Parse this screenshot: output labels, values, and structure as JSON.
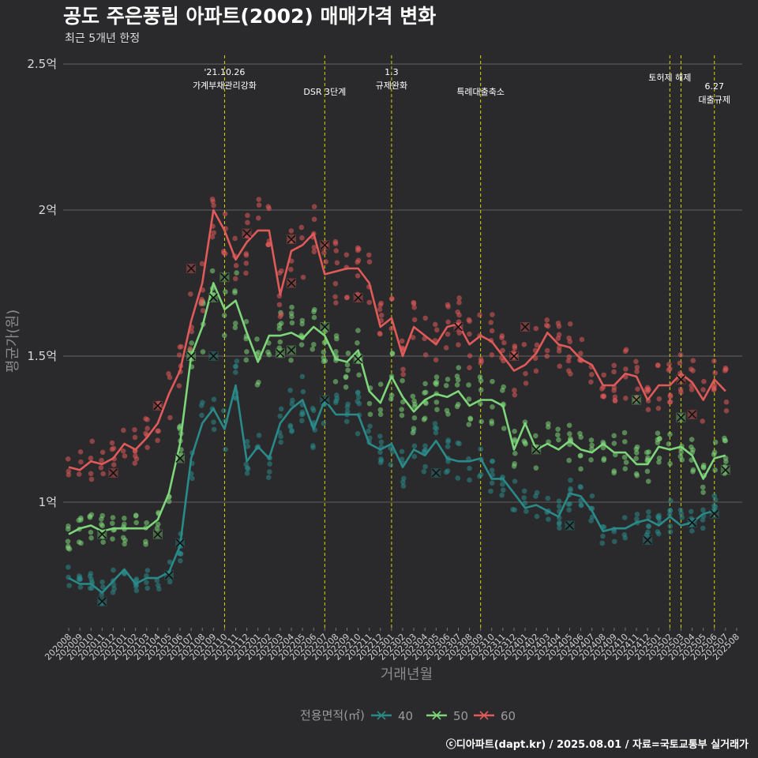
{
  "title": "공도 주은풍림 아파트(2002) 매매가격 변화",
  "subtitle": "최근 5개년 한정",
  "caption": "ⓒ디아파트(dapt.kr) / 2025.08.01 / 자료=국토교통부 실거래가",
  "colors": {
    "background": "#2a292b",
    "grid": "#5a595b",
    "event_line": "#d6d600",
    "s40": "#2a8a8a",
    "s50": "#7ed67a",
    "s60": "#e05a5a"
  },
  "chart_data": {
    "type": "line",
    "title": "공도 주은풍림 아파트(2002) 매매가격 변화",
    "subtitle": "최근 5개년 한정",
    "xlabel": "거래년월",
    "ylabel": "평균가(원)",
    "ylim": [
      0.57,
      2.53
    ],
    "yticks": [
      1.0,
      1.5,
      2.0,
      2.5
    ],
    "ytick_labels": [
      "1억",
      "1.5억",
      "2억",
      "2.5억"
    ],
    "grid": true,
    "legend_title": "전용면적(㎡)",
    "legend_position": "bottom",
    "categories": [
      "202008",
      "202009",
      "202010",
      "202011",
      "202012",
      "202101",
      "202102",
      "202103",
      "202104",
      "202105",
      "202106",
      "202107",
      "202108",
      "202109",
      "202110",
      "202111",
      "202112",
      "202201",
      "202202",
      "202203",
      "202204",
      "202205",
      "202206",
      "202207",
      "202208",
      "202209",
      "202210",
      "202211",
      "202212",
      "202301",
      "202302",
      "202303",
      "202304",
      "202305",
      "202306",
      "202307",
      "202308",
      "202309",
      "202310",
      "202311",
      "202312",
      "202401",
      "202402",
      "202403",
      "202404",
      "202405",
      "202406",
      "202407",
      "202408",
      "202409",
      "202410",
      "202411",
      "202412",
      "202501",
      "202502",
      "202503",
      "202504",
      "202505",
      "202506",
      "202507",
      "202508"
    ],
    "series": [
      {
        "name": "40",
        "color": "#2a8a8a",
        "values": [
          0.74,
          0.72,
          0.72,
          0.69,
          0.73,
          0.77,
          0.72,
          0.74,
          0.74,
          0.76,
          0.85,
          1.15,
          1.27,
          1.32,
          1.25,
          1.4,
          1.14,
          1.19,
          1.15,
          1.27,
          1.32,
          1.35,
          1.25,
          1.35,
          1.3,
          1.3,
          1.3,
          1.2,
          1.18,
          1.2,
          1.12,
          1.18,
          1.16,
          1.21,
          1.15,
          1.14,
          1.14,
          1.15,
          1.08,
          1.08,
          1.03,
          0.98,
          0.99,
          0.97,
          0.95,
          1.03,
          1.02,
          0.97,
          0.9,
          0.91,
          0.91,
          0.93,
          0.94,
          0.92,
          0.95,
          0.92,
          0.93,
          0.96,
          0.97,
          null,
          null
        ],
        "markers": [
          [
            "202011",
            0.66
          ],
          [
            "202105",
            0.75
          ],
          [
            "202106",
            0.86
          ],
          [
            "202109",
            1.5
          ],
          [
            "202207",
            1.35
          ],
          [
            "202305",
            1.1
          ],
          [
            "202405",
            0.92
          ],
          [
            "202412",
            0.87
          ],
          [
            "202504",
            0.93
          ],
          [
            "202506",
            0.96
          ]
        ]
      },
      {
        "name": "50",
        "color": "#7ed67a",
        "values": [
          0.89,
          0.91,
          0.92,
          0.9,
          0.91,
          0.91,
          0.91,
          0.91,
          0.94,
          1.03,
          1.2,
          1.5,
          1.6,
          1.75,
          1.66,
          1.69,
          1.58,
          1.48,
          1.57,
          1.57,
          1.58,
          1.56,
          1.6,
          1.57,
          1.49,
          1.48,
          1.52,
          1.38,
          1.34,
          1.43,
          1.36,
          1.31,
          1.35,
          1.37,
          1.36,
          1.38,
          1.33,
          1.35,
          1.35,
          1.33,
          1.18,
          1.27,
          1.18,
          1.2,
          1.18,
          1.21,
          1.18,
          1.17,
          1.2,
          1.17,
          1.17,
          1.13,
          1.13,
          1.19,
          1.18,
          1.19,
          1.16,
          1.08,
          1.15,
          1.16,
          null
        ],
        "markers": [
          [
            "202011",
            0.89
          ],
          [
            "202104",
            0.89
          ],
          [
            "202106",
            1.15
          ],
          [
            "202107",
            1.5
          ],
          [
            "202109",
            1.7
          ],
          [
            "202110",
            1.77
          ],
          [
            "202203",
            1.51
          ],
          [
            "202204",
            1.52
          ],
          [
            "202207",
            1.6
          ],
          [
            "202210",
            1.49
          ],
          [
            "202402",
            1.18
          ],
          [
            "202411",
            1.35
          ],
          [
            "202503",
            1.29
          ],
          [
            "202507",
            1.11
          ]
        ]
      },
      {
        "name": "60",
        "color": "#e05a5a",
        "values": [
          1.12,
          1.11,
          1.14,
          1.13,
          1.15,
          1.2,
          1.18,
          1.22,
          1.27,
          1.37,
          1.45,
          1.62,
          1.75,
          2.0,
          1.93,
          1.83,
          1.89,
          1.93,
          1.93,
          1.71,
          1.86,
          1.88,
          1.92,
          1.78,
          1.79,
          1.8,
          1.8,
          1.75,
          1.6,
          1.63,
          1.5,
          1.6,
          1.57,
          1.54,
          1.6,
          1.61,
          1.54,
          1.57,
          1.55,
          1.5,
          1.45,
          1.47,
          1.51,
          1.58,
          1.54,
          1.53,
          1.49,
          1.47,
          1.4,
          1.4,
          1.44,
          1.43,
          1.35,
          1.4,
          1.4,
          1.44,
          1.41,
          1.35,
          1.42,
          1.38,
          null
        ],
        "markers": [
          [
            "202012",
            1.1
          ],
          [
            "202104",
            1.33
          ],
          [
            "202107",
            1.8
          ],
          [
            "202112",
            1.92
          ],
          [
            "202204",
            1.9
          ],
          [
            "202204",
            1.75
          ],
          [
            "202207",
            1.88
          ],
          [
            "202210",
            1.7
          ],
          [
            "202307",
            1.6
          ],
          [
            "202401",
            1.6
          ],
          [
            "202312",
            1.5
          ],
          [
            "202503",
            1.42
          ],
          [
            "202504",
            1.3
          ]
        ]
      }
    ],
    "events": [
      {
        "x": "202110",
        "lines": [
          "'21.10.26",
          "가계부채관리강화"
        ]
      },
      {
        "x": "202207",
        "lines": [
          "DSR 3단계"
        ]
      },
      {
        "x": "202301",
        "lines": [
          "1.3",
          "규제완화"
        ]
      },
      {
        "x": "202309",
        "lines": [
          "특례대출축소"
        ]
      },
      {
        "x": "202502",
        "lines": [
          "토허제 해제"
        ]
      },
      {
        "x": "202503",
        "lines": []
      },
      {
        "x": "202506",
        "lines": [
          "6.27",
          "대출규제"
        ]
      }
    ]
  }
}
